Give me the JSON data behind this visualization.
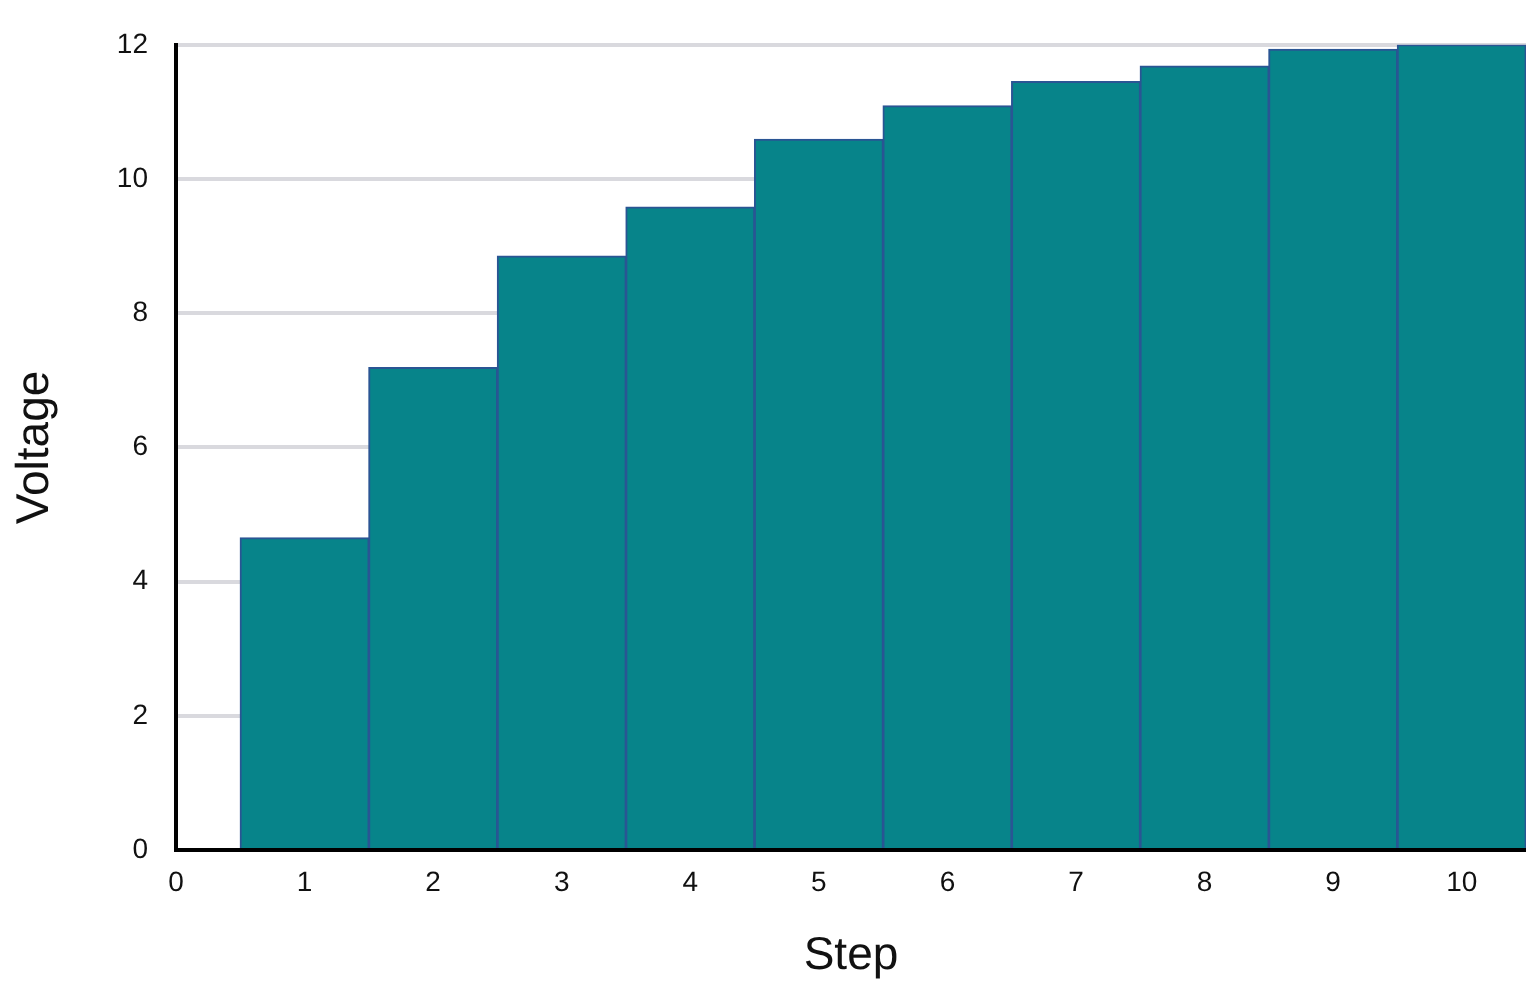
{
  "chart_data": {
    "type": "bar",
    "xlabel": "Step",
    "ylabel": "Voltage",
    "x": [
      1,
      2,
      3,
      4,
      5,
      6,
      7,
      8,
      9,
      10
    ],
    "values": [
      4.65,
      7.19,
      8.85,
      9.58,
      10.59,
      11.09,
      11.45,
      11.68,
      11.93,
      12.0
    ],
    "color": "#07848a",
    "xlim": [
      0,
      10.5
    ],
    "xticks": [
      0,
      1,
      2,
      3,
      4,
      5,
      6,
      7,
      8,
      9,
      10
    ],
    "ylim": [
      0,
      12
    ],
    "yticks": [
      0,
      2,
      4,
      6,
      8,
      10,
      12
    ],
    "grid": "y",
    "legend": false
  }
}
